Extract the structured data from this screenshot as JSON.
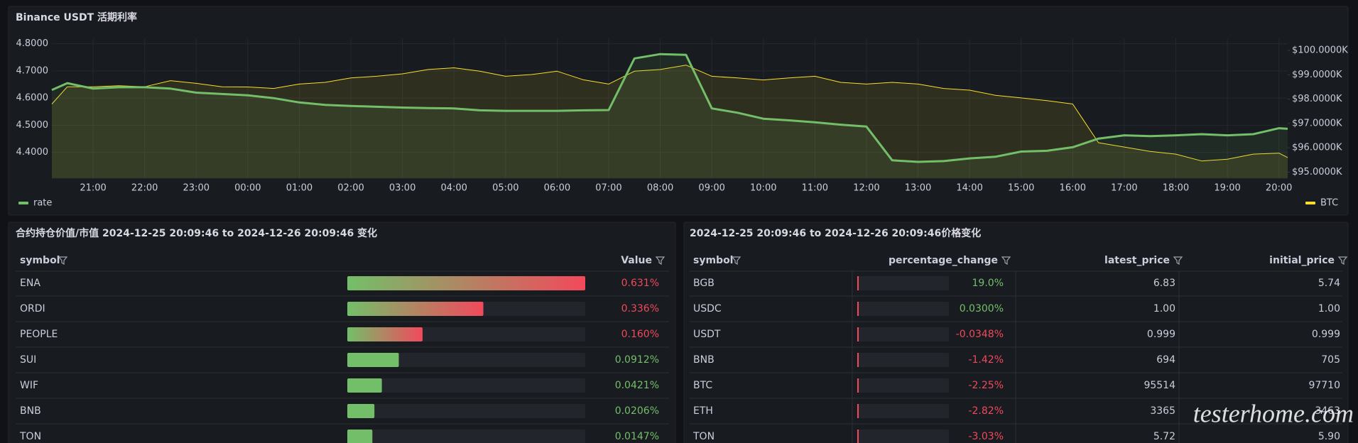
{
  "chart_data": {
    "type": "line",
    "title": "Binance USDT 活期利率",
    "x": [
      20.2,
      20.5,
      21.0,
      21.5,
      22.0,
      22.5,
      23.0,
      23.5,
      24.0,
      24.5,
      25.0,
      25.5,
      26.0,
      26.5,
      27.0,
      27.5,
      28.0,
      28.5,
      29.0,
      29.5,
      30.0,
      30.5,
      31.0,
      31.5,
      32.0,
      32.5,
      33.0,
      33.5,
      34.0,
      34.5,
      35.0,
      35.5,
      36.0,
      36.5,
      37.0,
      37.5,
      38.0,
      38.5,
      39.0,
      39.5,
      40.0,
      40.5,
      41.0,
      41.5,
      42.0,
      42.5,
      43.0,
      43.5,
      44.0,
      44.17
    ],
    "xlim": [
      20.2,
      44.17
    ],
    "xticks": [
      {
        "value": 21,
        "label": "21:00"
      },
      {
        "value": 22,
        "label": "22:00"
      },
      {
        "value": 23,
        "label": "23:00"
      },
      {
        "value": 24,
        "label": "00:00"
      },
      {
        "value": 25,
        "label": "01:00"
      },
      {
        "value": 26,
        "label": "02:00"
      },
      {
        "value": 27,
        "label": "03:00"
      },
      {
        "value": 28,
        "label": "04:00"
      },
      {
        "value": 29,
        "label": "05:00"
      },
      {
        "value": 30,
        "label": "06:00"
      },
      {
        "value": 31,
        "label": "07:00"
      },
      {
        "value": 32,
        "label": "08:00"
      },
      {
        "value": 33,
        "label": "09:00"
      },
      {
        "value": 34,
        "label": "10:00"
      },
      {
        "value": 35,
        "label": "11:00"
      },
      {
        "value": 36,
        "label": "12:00"
      },
      {
        "value": 37,
        "label": "13:00"
      },
      {
        "value": 38,
        "label": "14:00"
      },
      {
        "value": 39,
        "label": "15:00"
      },
      {
        "value": 40,
        "label": "16:00"
      },
      {
        "value": 41,
        "label": "17:00"
      },
      {
        "value": 42,
        "label": "18:00"
      },
      {
        "value": 43,
        "label": "19:00"
      },
      {
        "value": 44,
        "label": "20:00"
      }
    ],
    "ylim": [
      4.305,
      4.82
    ],
    "yticks": [
      {
        "value": 4.4,
        "label": "4.4000"
      },
      {
        "value": 4.5,
        "label": "4.5000"
      },
      {
        "value": 4.6,
        "label": "4.6000"
      },
      {
        "value": 4.7,
        "label": "4.7000"
      },
      {
        "value": 4.8,
        "label": "4.8000"
      }
    ],
    "y2lim": [
      94750,
      100500
    ],
    "y2ticks": [
      {
        "value": 95000,
        "label": "$95.0000K"
      },
      {
        "value": 96000,
        "label": "$96.0000K"
      },
      {
        "value": 97000,
        "label": "$97.0000K"
      },
      {
        "value": 98000,
        "label": "$98.0000K"
      },
      {
        "value": 99000,
        "label": "$99.0000K"
      },
      {
        "value": 100000,
        "label": "$100.0000K"
      }
    ],
    "grid": true,
    "series": [
      {
        "name": "rate",
        "color": "#73bf69",
        "values": [
          4.63,
          4.655,
          4.635,
          4.64,
          4.64,
          4.635,
          4.62,
          4.615,
          4.61,
          4.6,
          4.584,
          4.575,
          4.571,
          4.568,
          4.565,
          4.563,
          4.562,
          4.555,
          4.553,
          4.553,
          4.553,
          4.555,
          4.556,
          4.746,
          4.762,
          4.759,
          4.562,
          4.546,
          4.524,
          4.518,
          4.511,
          4.502,
          4.495,
          4.371,
          4.365,
          4.368,
          4.378,
          4.384,
          4.403,
          4.406,
          4.419,
          4.451,
          4.463,
          4.46,
          4.463,
          4.467,
          4.463,
          4.467,
          4.489,
          4.487
        ]
      },
      {
        "name": "BTC",
        "color": "#fade2a",
        "axis": "y2",
        "values": [
          97800,
          98510,
          98510,
          98550,
          98510,
          98760,
          98650,
          98510,
          98500,
          98440,
          98620,
          98690,
          98870,
          98940,
          99040,
          99220,
          99290,
          99150,
          98940,
          99010,
          99150,
          98800,
          98620,
          99150,
          99220,
          99400,
          98940,
          98870,
          98790,
          98870,
          98940,
          98690,
          98620,
          98690,
          98620,
          98440,
          98370,
          98160,
          98050,
          97940,
          97800,
          96210,
          96030,
          95850,
          95740,
          95460,
          95530,
          95740,
          95780,
          95600
        ]
      }
    ]
  },
  "open_interest_table": {
    "title": "合约持仓价值/市值 2024-12-25 20:09:46 to 2024-12-26 20:09:46 变化",
    "columns": [
      "symbol",
      "Value"
    ],
    "symbols": [
      "ENA",
      "ORDI",
      "PEOPLE",
      "SUI",
      "WIF",
      "BNB",
      "TON"
    ],
    "values": [
      0.631,
      0.336,
      0.16,
      0.0912,
      0.0421,
      0.0206,
      0.0147
    ],
    "value_labels": [
      "0.631%",
      "0.336%",
      "0.160%",
      "0.0912%",
      "0.0421%",
      "0.0206%",
      "0.0147%"
    ],
    "colors": [
      "#f2495c",
      "#f2495c",
      "#f2495c",
      "#73bf69",
      "#73bf69",
      "#73bf69",
      "#73bf69"
    ]
  },
  "price_table": {
    "title": "2024-12-25 20:09:46 to 2024-12-26 20:09:46价格变化",
    "columns": [
      "symbol",
      "percentage_change",
      "latest_price",
      "initial_price"
    ],
    "rows": [
      [
        "BGB",
        "19.0%",
        "6.83",
        "5.74"
      ],
      [
        "USDC",
        "0.0300%",
        "1.00",
        "1.00"
      ],
      [
        "USDT",
        "-0.0348%",
        "0.999",
        "0.999"
      ],
      [
        "BNB",
        "-1.42%",
        "694",
        "705"
      ],
      [
        "BTC",
        "-2.25%",
        "95514",
        "97710"
      ],
      [
        "ETH",
        "-2.82%",
        "3365",
        "3463"
      ],
      [
        "TON",
        "-3.03%",
        "5.72",
        "5.90"
      ]
    ]
  },
  "watermark": "testerhome.com"
}
